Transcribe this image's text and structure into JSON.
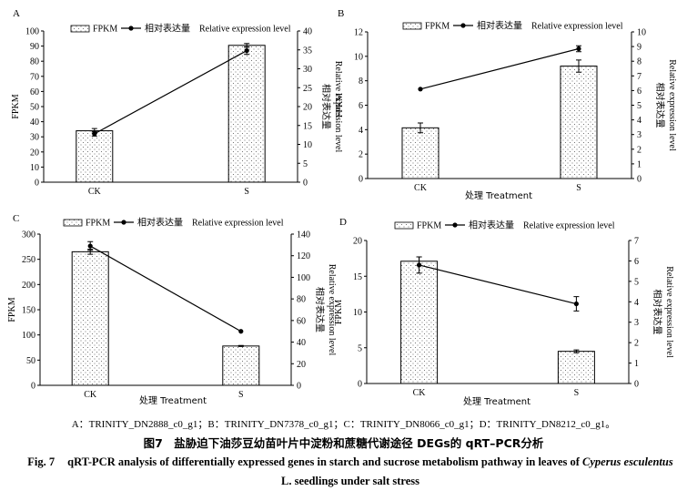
{
  "chart_data": [
    {
      "type": "bar",
      "panel_label": "A",
      "categories": [
        "CK",
        "S"
      ],
      "xlabel": "",
      "ylabel": "FPKM",
      "ylabel_right": "Relative expression level",
      "ylabel_right_cn": "相对表达量",
      "ylim": [
        0,
        100
      ],
      "yticks": [
        0,
        10,
        20,
        30,
        40,
        50,
        60,
        70,
        80,
        90,
        100
      ],
      "y2lim": [
        0,
        40
      ],
      "y2ticks": [
        0,
        5,
        10,
        15,
        20,
        25,
        30,
        35,
        40
      ],
      "legend": {
        "bar": "FPKM",
        "line_cn": "相对表达量",
        "line_en": "Relative expression level",
        "position": "top"
      },
      "series": [
        {
          "name": "FPKM",
          "kind": "bar",
          "axis": "left",
          "values": [
            34,
            90.5
          ],
          "errors": [
            1.5,
            1.2
          ]
        },
        {
          "name": "相对表达量 Relative expression level",
          "kind": "line",
          "axis": "right",
          "values": [
            12.8,
            34.8
          ],
          "errors": [
            0.6,
            1.0
          ]
        }
      ]
    },
    {
      "type": "bar",
      "panel_label": "B",
      "categories": [
        "CK",
        "S"
      ],
      "xlabel": "处理 Treatment",
      "ylabel": "FPKM",
      "ylabel_right": "Relative expression level",
      "ylabel_right_cn": "相对表达量",
      "ylim": [
        0,
        12
      ],
      "yticks": [
        0,
        2,
        4,
        6,
        8,
        10,
        12
      ],
      "y2lim": [
        0,
        10
      ],
      "y2ticks": [
        0,
        1,
        2,
        3,
        4,
        5,
        6,
        7,
        8,
        9,
        10
      ],
      "legend": {
        "bar": "FPKM",
        "line_cn": "相对表达量",
        "line_en": "Relative expression level",
        "position": "top"
      },
      "series": [
        {
          "name": "FPKM",
          "kind": "bar",
          "axis": "left",
          "values": [
            4.15,
            9.2
          ],
          "errors": [
            0.4,
            0.5
          ]
        },
        {
          "name": "相对表达量 Relative expression level",
          "kind": "line",
          "axis": "right",
          "values": [
            6.1,
            8.85
          ],
          "errors": [
            0,
            0.2
          ]
        }
      ]
    },
    {
      "type": "bar",
      "panel_label": "C",
      "categories": [
        "CK",
        "S"
      ],
      "xlabel": "处理 Treatment",
      "ylabel": "FPKM",
      "ylabel_right": "Relative expression level",
      "ylabel_right_cn": "相对表达量",
      "ylim": [
        0,
        300
      ],
      "yticks": [
        0,
        50,
        100,
        150,
        200,
        250,
        300
      ],
      "y2lim": [
        0,
        140
      ],
      "y2ticks": [
        0,
        20,
        40,
        60,
        80,
        100,
        120,
        140
      ],
      "legend": {
        "bar": "FPKM",
        "line_cn": "相对表达量",
        "line_en": "Relative expression level",
        "position": "top"
      },
      "series": [
        {
          "name": "FPKM",
          "kind": "bar",
          "axis": "left",
          "values": [
            265,
            78
          ],
          "errors": [
            5,
            1
          ]
        },
        {
          "name": "相对表达量 Relative expression level",
          "kind": "line",
          "axis": "right",
          "values": [
            129,
            50
          ],
          "errors": [
            4,
            0
          ]
        }
      ]
    },
    {
      "type": "bar",
      "panel_label": "D",
      "categories": [
        "CK",
        "S"
      ],
      "xlabel": "处理 Treatment",
      "ylabel": "FPKM",
      "ylabel_right": "Relative expression level",
      "ylabel_right_cn": "相对表达量",
      "ylim": [
        0,
        20
      ],
      "yticks": [
        0,
        5,
        10,
        15,
        20
      ],
      "y2lim": [
        0,
        7
      ],
      "y2ticks": [
        0,
        1,
        2,
        3,
        4,
        5,
        6,
        7
      ],
      "legend": {
        "bar": "FPKM",
        "line_cn": "相对表达量",
        "line_en": "Relative expression level",
        "position": "top"
      },
      "series": [
        {
          "name": "FPKM",
          "kind": "bar",
          "axis": "left",
          "values": [
            17.1,
            4.5
          ],
          "errors": [
            0.6,
            0.2
          ]
        },
        {
          "name": "相对表达量 Relative expression level",
          "kind": "line",
          "axis": "right",
          "values": [
            5.8,
            3.9
          ],
          "errors": [
            0.4,
            0.35
          ]
        }
      ]
    }
  ],
  "caption": {
    "ids": "A：TRINITY_DN2888_c0_g1；B：TRINITY_DN7378_c0_g1；C：TRINITY_DN8066_c0_g1；D：TRINITY_DN8212_c0_g1。",
    "cn": "图7　盐胁迫下油莎豆幼苗叶片中淀粉和蔗糖代谢途径 DEGs的 qRT–PCR分析",
    "en_label": "Fig. 7",
    "en_main": "qRT-PCR analysis of differentially expressed genes in starch and sucrose metabolism pathway in leaves of",
    "en_species": "Cyperus esculentus",
    "en_tail": "L. seedlings under salt stress"
  },
  "colors": {
    "bar_fill": "#ffffff",
    "bar_dots": "#555555",
    "line": "#000000",
    "axis": "#000000"
  }
}
